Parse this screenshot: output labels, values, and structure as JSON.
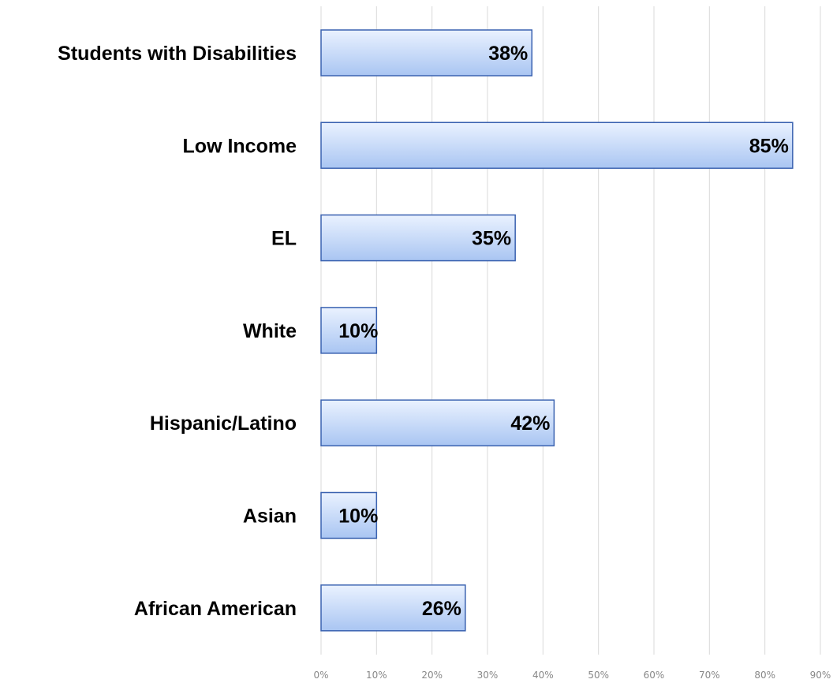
{
  "chart_data": {
    "type": "bar",
    "orientation": "horizontal",
    "categories": [
      "Students with Disabilities",
      "Low Income",
      "EL",
      "White",
      "Hispanic/Latino",
      "Asian",
      "African American"
    ],
    "values": [
      38,
      85,
      35,
      10,
      42,
      10,
      26
    ],
    "data_labels": [
      "38%",
      "85%",
      "35%",
      "10%",
      "42%",
      "10%",
      "26%"
    ],
    "xlim": [
      0,
      90
    ],
    "x_ticks": [
      0,
      10,
      20,
      30,
      40,
      50,
      60,
      70,
      80,
      90
    ],
    "x_tick_labels": [
      "0%",
      "10%",
      "20%",
      "30%",
      "40%",
      "50%",
      "60%",
      "70%",
      "80%",
      "90%"
    ],
    "title": "",
    "xlabel": "",
    "ylabel": "",
    "grid": "vertical",
    "legend": "none",
    "colors": {
      "bar_fill_light": "#eaf2ff",
      "bar_fill_dark": "#a9c5f2",
      "bar_stroke": "#3a62b0",
      "gridline": "#d9d9d9",
      "tick_text": "#888888",
      "label_text": "#000000"
    }
  }
}
